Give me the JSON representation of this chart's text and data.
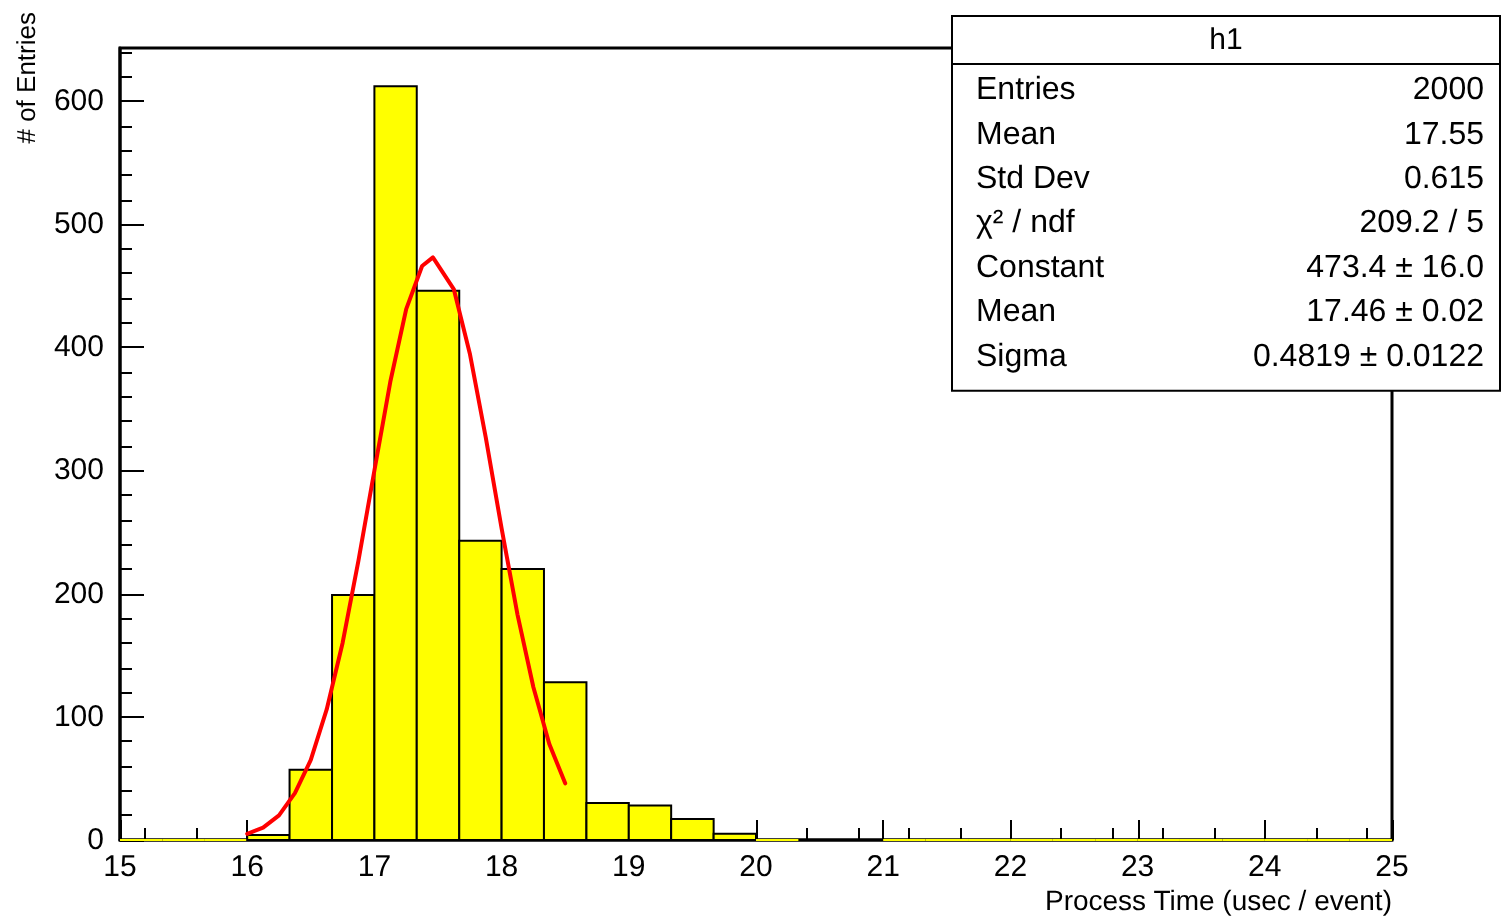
{
  "chart_data": {
    "type": "histogram",
    "xlabel": "Process Time (usec / event)",
    "ylabel": "# of Entries",
    "series": [
      {
        "color": "#ffff00",
        "bins": [
          15,
          15.333,
          15.667,
          16,
          16.333,
          16.667,
          17,
          17.333,
          17.667,
          18,
          18.333,
          18.667,
          19,
          19.333,
          19.667,
          20,
          20.333,
          20.667,
          21,
          21.333,
          21.667,
          22,
          22.333,
          22.667,
          23,
          23.333,
          23.667,
          24,
          24.333,
          24.667,
          25
        ],
        "values": [
          0,
          0,
          0,
          4,
          57,
          199,
          612,
          446,
          243,
          220,
          128,
          30,
          28,
          17,
          5,
          0,
          null,
          null,
          0,
          0,
          0,
          0,
          0,
          0,
          0,
          0,
          0,
          0,
          0,
          0
        ]
      },
      {
        "type": "line",
        "color": "#ff0000",
        "marker": "none",
        "x": [
          16,
          16.125,
          16.25,
          16.375,
          16.5,
          16.625,
          16.75,
          16.875,
          17,
          17.125,
          17.25,
          17.375,
          17.46,
          17.625,
          17.75,
          17.875,
          18,
          18.125,
          18.25,
          18.375,
          18.5
        ],
        "values": [
          5,
          10,
          20,
          38,
          65,
          106,
          160,
          227,
          300,
          372,
          431,
          466,
          473,
          447,
          395,
          327,
          253,
          183,
          124,
          78,
          46
        ]
      }
    ],
    "xlim": [
      15,
      25
    ],
    "xticks": [
      15,
      16,
      17,
      18,
      19,
      20,
      21,
      22,
      23,
      24,
      25
    ],
    "ylim": [
      0,
      643
    ],
    "yticks": [
      0,
      100,
      200,
      300,
      400,
      500,
      600
    ],
    "grid": false,
    "annotations": [
      "h1",
      "Entries",
      "2000",
      "Mean",
      "17.55",
      "Std Dev",
      "0.615",
      "χ² / ndf",
      "209.2 / 5",
      "Constant",
      "473.4 ± 16.0",
      "Mean",
      "17.46 ± 0.02",
      "Sigma",
      "0.4819 ± 0.0122"
    ]
  }
}
